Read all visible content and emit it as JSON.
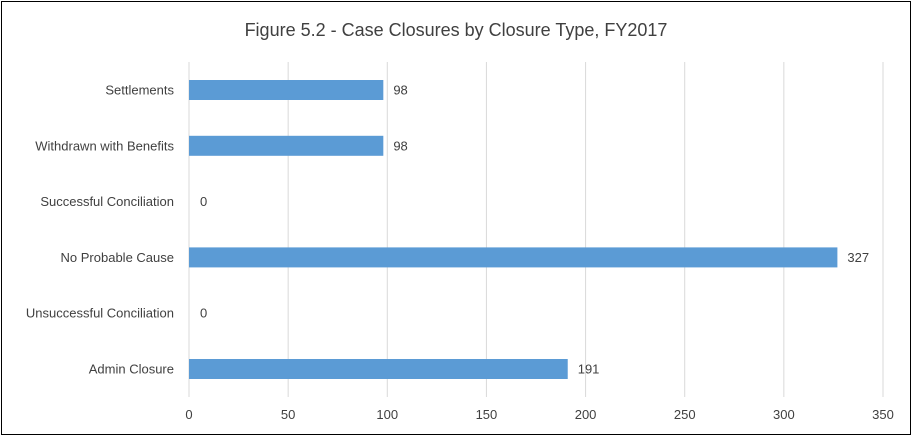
{
  "chart_data": {
    "type": "bar",
    "orientation": "horizontal",
    "title": "Figure 5.2 - Case Closures by Closure Type, FY2017",
    "categories": [
      "Settlements",
      "Withdrawn with Benefits",
      "Successful Conciliation",
      "No Probable Cause",
      "Unsuccessful Conciliation",
      "Admin Closure"
    ],
    "values": [
      98,
      98,
      0,
      327,
      0,
      191
    ],
    "xlim": [
      0,
      350
    ],
    "xticks": [
      0,
      50,
      100,
      150,
      200,
      250,
      300,
      350
    ],
    "grid": true,
    "data_labels": true,
    "bar_color": "#5B9BD5"
  }
}
